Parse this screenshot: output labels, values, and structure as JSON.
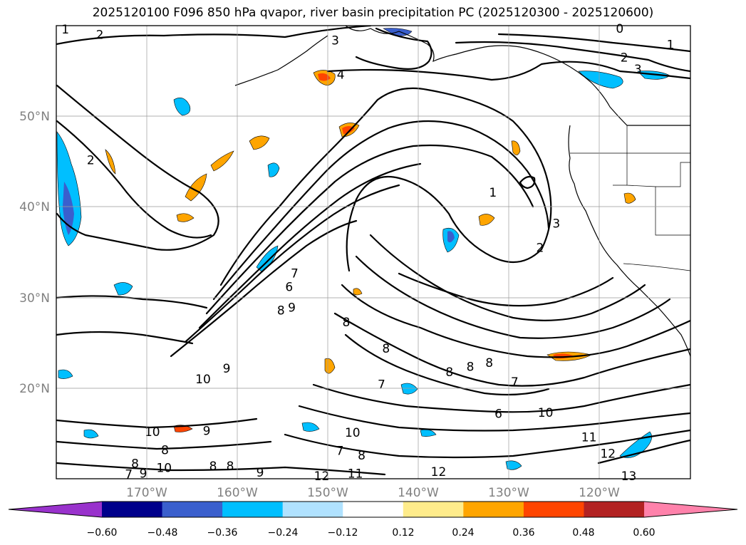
{
  "title": "2025120100 F096 850 hPa qvapor, river basin precipitation PC (2025120300 - 2025120600)",
  "map": {
    "lat_ticks": [
      "50°N",
      "40°N",
      "30°N",
      "20°N"
    ],
    "lon_ticks": [
      "170°W",
      "160°W",
      "150°W",
      "140°W",
      "130°W",
      "120°W"
    ],
    "grid": true,
    "extent": {
      "lon_min": -180,
      "lon_max": -110,
      "lat_min": 10,
      "lat_max": 60
    }
  },
  "colorbar": {
    "ticks": [
      "−0.60",
      "−0.48",
      "−0.36",
      "−0.24",
      "−0.12",
      "0.12",
      "0.24",
      "0.36",
      "0.48",
      "0.60"
    ],
    "colors": [
      "#9932cc",
      "#00008b",
      "#3a5fcd",
      "#00bfff",
      "#b0e2ff",
      "#ffffff",
      "#ffec8b",
      "#ffa500",
      "#ff4500",
      "#b22222",
      "#ff82ab"
    ],
    "extend": "both"
  },
  "contour_labels": [
    {
      "text": "1",
      "lon": -179,
      "lat": 59.6
    },
    {
      "text": "2",
      "lon": -175.2,
      "lat": 59
    },
    {
      "text": "3",
      "lon": -149.2,
      "lat": 58.4
    },
    {
      "text": "4",
      "lon": -148.6,
      "lat": 54.6
    },
    {
      "text": "0",
      "lon": -117.8,
      "lat": 59.7
    },
    {
      "text": "1",
      "lon": -112.2,
      "lat": 57.9
    },
    {
      "text": "2",
      "lon": -117.3,
      "lat": 56.5
    },
    {
      "text": "3",
      "lon": -115.8,
      "lat": 55.2
    },
    {
      "text": "2",
      "lon": -176.2,
      "lat": 45.2
    },
    {
      "text": "1",
      "lon": -131.8,
      "lat": 41.6
    },
    {
      "text": "3",
      "lon": -124.8,
      "lat": 38.2
    },
    {
      "text": "2",
      "lon": -126.6,
      "lat": 35.5
    },
    {
      "text": "7",
      "lon": -153.7,
      "lat": 32.7
    },
    {
      "text": "6",
      "lon": -154.3,
      "lat": 31.2
    },
    {
      "text": "8",
      "lon": -155.2,
      "lat": 28.6
    },
    {
      "text": "9",
      "lon": -154,
      "lat": 28.9
    },
    {
      "text": "8",
      "lon": -148,
      "lat": 27.3
    },
    {
      "text": "8",
      "lon": -143.6,
      "lat": 24.4
    },
    {
      "text": "8",
      "lon": -136.6,
      "lat": 21.8
    },
    {
      "text": "8",
      "lon": -134.3,
      "lat": 22.4
    },
    {
      "text": "8",
      "lon": -132.2,
      "lat": 22.8
    },
    {
      "text": "7",
      "lon": -144.1,
      "lat": 20.4
    },
    {
      "text": "7",
      "lon": -129.4,
      "lat": 20.7
    },
    {
      "text": "6",
      "lon": -131.2,
      "lat": 17.2
    },
    {
      "text": "10",
      "lon": -126,
      "lat": 17.3
    },
    {
      "text": "10",
      "lon": -163.8,
      "lat": 21
    },
    {
      "text": "9",
      "lon": -161.2,
      "lat": 22.2
    },
    {
      "text": "10",
      "lon": -169.4,
      "lat": 15.2
    },
    {
      "text": "9",
      "lon": -163.4,
      "lat": 15.3
    },
    {
      "text": "10",
      "lon": -147.3,
      "lat": 15.1
    },
    {
      "text": "8",
      "lon": -168,
      "lat": 13.2
    },
    {
      "text": "7",
      "lon": -148.7,
      "lat": 13.1
    },
    {
      "text": "8",
      "lon": -146.3,
      "lat": 12.6
    },
    {
      "text": "8",
      "lon": -171.3,
      "lat": 11.7
    },
    {
      "text": "7",
      "lon": -172,
      "lat": 10.5
    },
    {
      "text": "9",
      "lon": -170.4,
      "lat": 10.6
    },
    {
      "text": "10",
      "lon": -168.1,
      "lat": 11.2
    },
    {
      "text": "8",
      "lon": -162.7,
      "lat": 11.4
    },
    {
      "text": "8",
      "lon": -160.8,
      "lat": 11.4
    },
    {
      "text": "9",
      "lon": -157.5,
      "lat": 10.7
    },
    {
      "text": "12",
      "lon": -150.7,
      "lat": 10.3
    },
    {
      "text": "11",
      "lon": -147,
      "lat": 10.6
    },
    {
      "text": "12",
      "lon": -137.8,
      "lat": 10.8
    },
    {
      "text": "11",
      "lon": -121.2,
      "lat": 14.6
    },
    {
      "text": "12",
      "lon": -119.1,
      "lat": 12.8
    },
    {
      "text": "13",
      "lon": -116.8,
      "lat": 10.3
    }
  ]
}
